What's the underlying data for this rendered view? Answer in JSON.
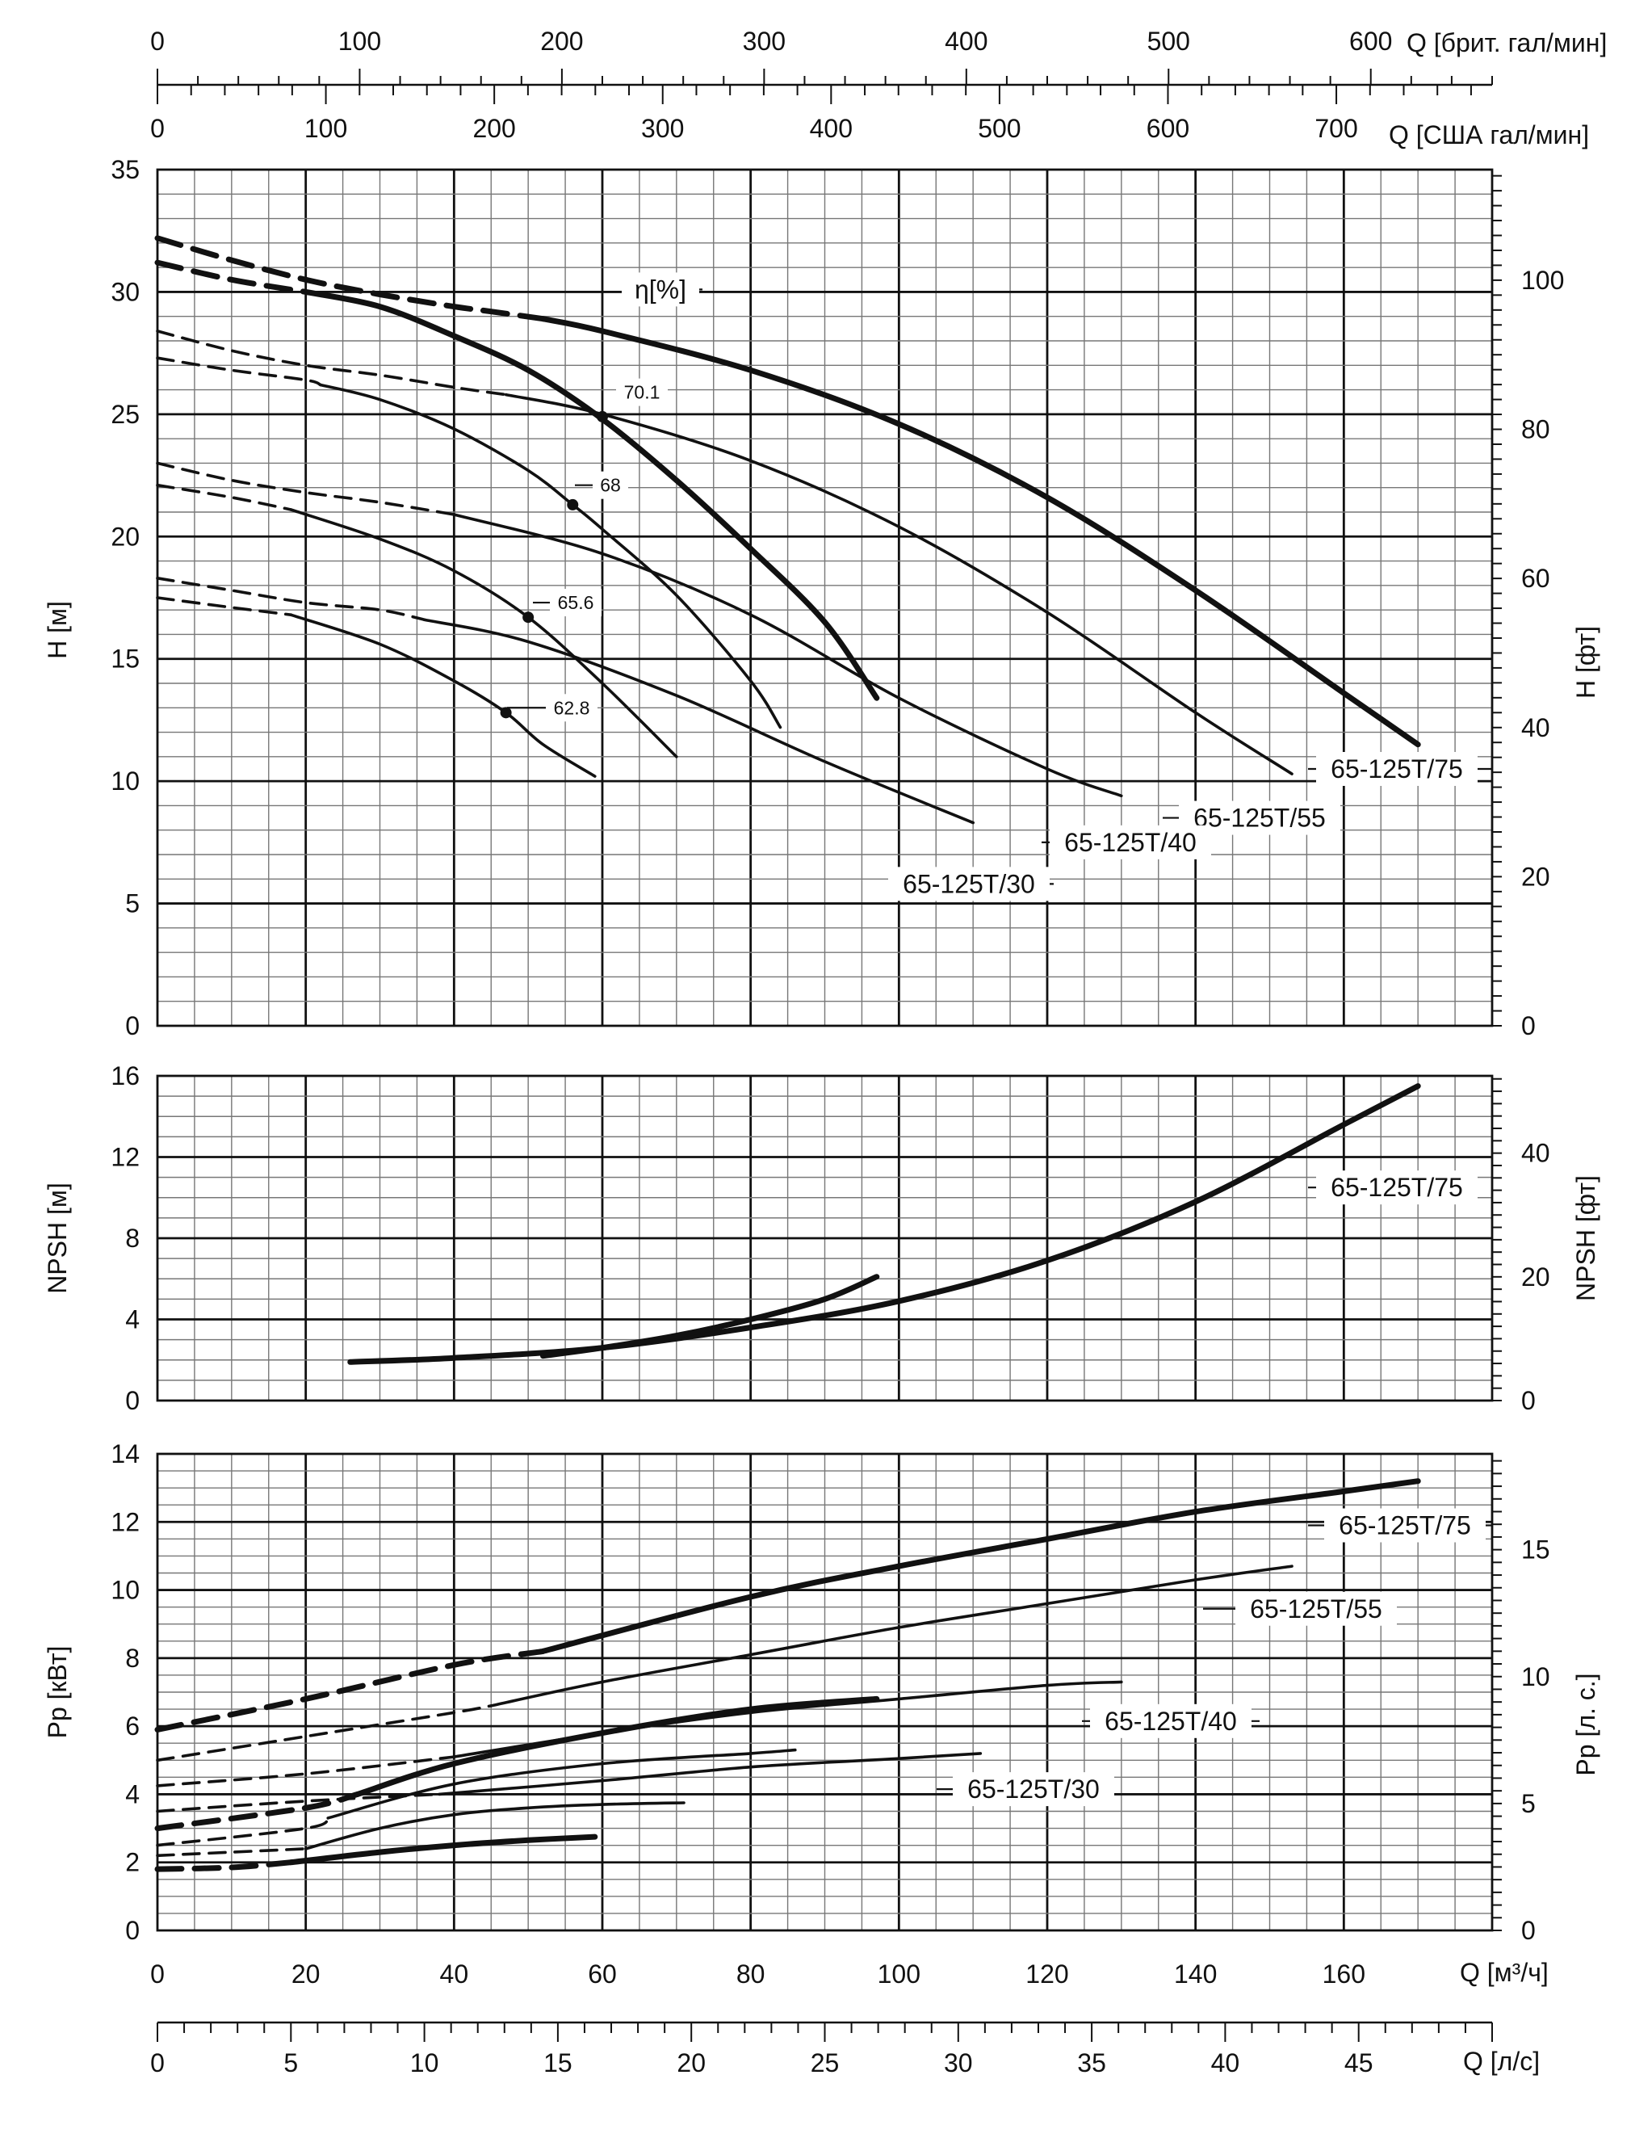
{
  "chart_data": {
    "type": "line",
    "flow_axes": {
      "m3h": {
        "label": "Q [м³/ч]",
        "range": [
          0,
          180
        ],
        "ticks": [
          0,
          20,
          40,
          60,
          80,
          100,
          120,
          140,
          160
        ]
      },
      "ls": {
        "label": "Q [л/с]",
        "range": [
          0,
          50
        ],
        "ticks": [
          0,
          5,
          10,
          15,
          20,
          25,
          30,
          35,
          40,
          45
        ]
      },
      "usgpm": {
        "label": "Q [США гал/мин]",
        "range": [
          0,
          792.5
        ],
        "ticks": [
          0,
          100,
          200,
          300,
          400,
          500,
          600,
          700
        ]
      },
      "ukgpm": {
        "label": "Q [брит. гал/мин]",
        "range": [
          0,
          660
        ],
        "ticks": [
          0,
          100,
          200,
          300,
          400,
          500,
          600
        ]
      }
    },
    "head_panel": {
      "ylabel": "H [м]",
      "ylim": [
        0,
        35
      ],
      "yticks": [
        0,
        5,
        10,
        15,
        20,
        25,
        30,
        35
      ],
      "ylabel_right": "H [фт]",
      "yticks_right": [
        0,
        20,
        40,
        60,
        80,
        100
      ],
      "efficiency_label": "η[%]",
      "efficiency_values": [
        "70.1",
        "68",
        "65.6",
        "62.8"
      ],
      "efficiency_points": [
        {
          "label": "70.1",
          "q": 60,
          "h": 24.9
        },
        {
          "label": "68",
          "q": 56,
          "h": 21.3
        },
        {
          "label": "65.6",
          "q": 50,
          "h": 16.7
        },
        {
          "label": "62.8",
          "q": 47,
          "h": 12.8
        }
      ],
      "series": [
        {
          "name": "65-125T/75",
          "dashed_q": [
            0,
            10,
            20,
            30,
            40,
            45,
            52
          ],
          "dashed_h": [
            32.2,
            31.3,
            30.5,
            29.9,
            29.4,
            29.2,
            28.9
          ],
          "q": [
            52,
            60,
            80,
            100,
            120,
            140,
            160,
            170
          ],
          "h": [
            28.9,
            28.4,
            26.8,
            24.6,
            21.6,
            17.8,
            13.6,
            11.5
          ],
          "weight": "thick"
        },
        {
          "name": "65-125T/55",
          "dashed_q": [
            0,
            10,
            20,
            30,
            40,
            47
          ],
          "dashed_h": [
            28.4,
            27.6,
            27.0,
            26.6,
            26.1,
            25.8
          ],
          "q": [
            47,
            60,
            80,
            100,
            120,
            140,
            153
          ],
          "h": [
            25.8,
            25.0,
            23.1,
            20.4,
            16.9,
            12.8,
            10.3
          ],
          "weight": "thin"
        },
        {
          "name": "65-125T/40",
          "dashed_q": [
            0,
            10,
            20,
            30,
            40
          ],
          "dashed_h": [
            23.0,
            22.3,
            21.8,
            21.4,
            20.9
          ],
          "q": [
            40,
            60,
            80,
            100,
            120,
            130
          ],
          "h": [
            20.9,
            19.3,
            16.8,
            13.4,
            10.5,
            9.4
          ],
          "weight": "thin"
        },
        {
          "name": "65-125T/30",
          "dashed_q": [
            0,
            10,
            20,
            30,
            36
          ],
          "dashed_h": [
            18.3,
            17.8,
            17.3,
            17.0,
            16.6
          ],
          "q": [
            36,
            50,
            70,
            90,
            110
          ],
          "h": [
            16.6,
            15.7,
            13.5,
            10.8,
            8.3
          ],
          "weight": "thin"
        },
        {
          "name": "",
          "dashed_q": [
            0,
            10,
            20
          ],
          "dashed_h": [
            31.2,
            30.5,
            30.0
          ],
          "q": [
            20,
            30,
            40,
            50,
            60,
            70,
            80,
            90,
            97
          ],
          "h": [
            30.0,
            29.4,
            28.2,
            26.8,
            24.8,
            22.3,
            19.5,
            16.5,
            13.4
          ],
          "weight": "thick"
        },
        {
          "name": "",
          "dashed_q": [
            0,
            10,
            20,
            22
          ],
          "dashed_h": [
            27.3,
            26.8,
            26.4,
            26.2
          ],
          "q": [
            22,
            30,
            40,
            50,
            56,
            60,
            70,
            80,
            84
          ],
          "h": [
            26.2,
            25.6,
            24.4,
            22.7,
            21.3,
            20.3,
            17.6,
            14.1,
            12.2
          ],
          "weight": "thin"
        },
        {
          "name": "",
          "dashed_q": [
            0,
            10,
            18
          ],
          "dashed_h": [
            22.1,
            21.6,
            21.1
          ],
          "q": [
            18,
            30,
            40,
            50,
            60,
            70
          ],
          "h": [
            21.1,
            19.9,
            18.6,
            16.7,
            14.0,
            11.0
          ],
          "weight": "thin"
        },
        {
          "name": "",
          "dashed_q": [
            0,
            10,
            18
          ],
          "dashed_h": [
            17.5,
            17.1,
            16.8
          ],
          "q": [
            18,
            30,
            40,
            47,
            52,
            59
          ],
          "h": [
            16.8,
            15.6,
            14.1,
            12.8,
            11.5,
            10.2
          ],
          "weight": "thin"
        }
      ],
      "labels": [
        "65-125T/75",
        "65-125T/55",
        "65-125T/40",
        "65-125T/30"
      ]
    },
    "npsh_panel": {
      "ylabel": "NPSH [м]",
      "ylim": [
        0,
        16
      ],
      "yticks": [
        0,
        4,
        8,
        12,
        16
      ],
      "ylabel_right": "NPSH [фт]",
      "yticks_right": [
        0,
        20,
        40
      ],
      "label": "65-125T/75",
      "series": [
        {
          "q": [
            26,
            40,
            60,
            80,
            100,
            120,
            140,
            160,
            170
          ],
          "npsh": [
            1.9,
            2.1,
            2.6,
            3.6,
            4.9,
            6.9,
            9.8,
            13.6,
            15.5
          ],
          "weight": "thick"
        },
        {
          "q": [
            52,
            60,
            70,
            80,
            90,
            97
          ],
          "npsh": [
            2.2,
            2.6,
            3.2,
            4.0,
            5.0,
            6.1
          ],
          "weight": "thick"
        }
      ]
    },
    "power_panel": {
      "ylabel": "Pp [кВт]",
      "ylim": [
        0,
        14
      ],
      "yticks": [
        0,
        2,
        4,
        6,
        8,
        10,
        12,
        14
      ],
      "ylabel_right": "Pp [л. с.]",
      "yticks_right": [
        0,
        5,
        10,
        15
      ],
      "labels": [
        "65-125T/75",
        "65-125T/55",
        "65-125T/40",
        "65-125T/30"
      ],
      "series": [
        {
          "name": "65-125T/75",
          "dashed_q": [
            0,
            20,
            40,
            52
          ],
          "dashed_p": [
            5.9,
            6.8,
            7.8,
            8.2
          ],
          "q": [
            52,
            80,
            100,
            120,
            140,
            160,
            170
          ],
          "p": [
            8.2,
            9.8,
            10.7,
            11.5,
            12.3,
            12.9,
            13.2
          ],
          "weight": "thick"
        },
        {
          "name": "65-125T/55",
          "dashed_q": [
            0,
            20,
            40,
            45
          ],
          "dashed_p": [
            5.0,
            5.7,
            6.4,
            6.6
          ],
          "q": [
            45,
            60,
            80,
            100,
            120,
            140,
            153
          ],
          "p": [
            6.6,
            7.3,
            8.1,
            8.9,
            9.6,
            10.3,
            10.7
          ],
          "weight": "thin"
        },
        {
          "name": "65-125T/40",
          "dashed_q": [
            0,
            20,
            40
          ],
          "dashed_p": [
            4.25,
            4.6,
            5.1
          ],
          "q": [
            40,
            60,
            80,
            100,
            120,
            130
          ],
          "p": [
            5.1,
            5.8,
            6.4,
            6.8,
            7.2,
            7.3
          ],
          "weight": "thin"
        },
        {
          "name": "65-125T/30",
          "dashed_q": [
            0,
            20,
            38
          ],
          "dashed_p": [
            3.5,
            3.8,
            4.0
          ],
          "q": [
            38,
            60,
            80,
            100,
            111
          ],
          "p": [
            4.0,
            4.4,
            4.8,
            5.05,
            5.2
          ],
          "weight": "thin"
        },
        {
          "name": "",
          "dashed_q": [
            0,
            20,
            27
          ],
          "dashed_p": [
            3.0,
            3.6,
            4.0
          ],
          "q": [
            27,
            40,
            60,
            80,
            97
          ],
          "p": [
            4.0,
            4.9,
            5.8,
            6.5,
            6.8
          ],
          "weight": "thick"
        },
        {
          "name": "",
          "dashed_q": [
            0,
            20,
            23
          ],
          "dashed_p": [
            2.5,
            3.0,
            3.3
          ],
          "q": [
            23,
            40,
            60,
            80,
            86
          ],
          "p": [
            3.3,
            4.3,
            4.9,
            5.2,
            5.3
          ],
          "weight": "thin"
        },
        {
          "name": "",
          "dashed_q": [
            0,
            10,
            20
          ],
          "dashed_p": [
            2.2,
            2.3,
            2.4
          ],
          "q": [
            20,
            30,
            40,
            50,
            60,
            71
          ],
          "p": [
            2.4,
            3.0,
            3.4,
            3.6,
            3.7,
            3.75
          ],
          "weight": "thin"
        },
        {
          "name": "",
          "dashed_q": [
            0,
            10,
            18
          ],
          "dashed_p": [
            1.8,
            1.85,
            2.0
          ],
          "q": [
            18,
            30,
            40,
            50,
            59
          ],
          "p": [
            2.0,
            2.3,
            2.5,
            2.65,
            2.75
          ],
          "weight": "thick"
        }
      ]
    }
  }
}
